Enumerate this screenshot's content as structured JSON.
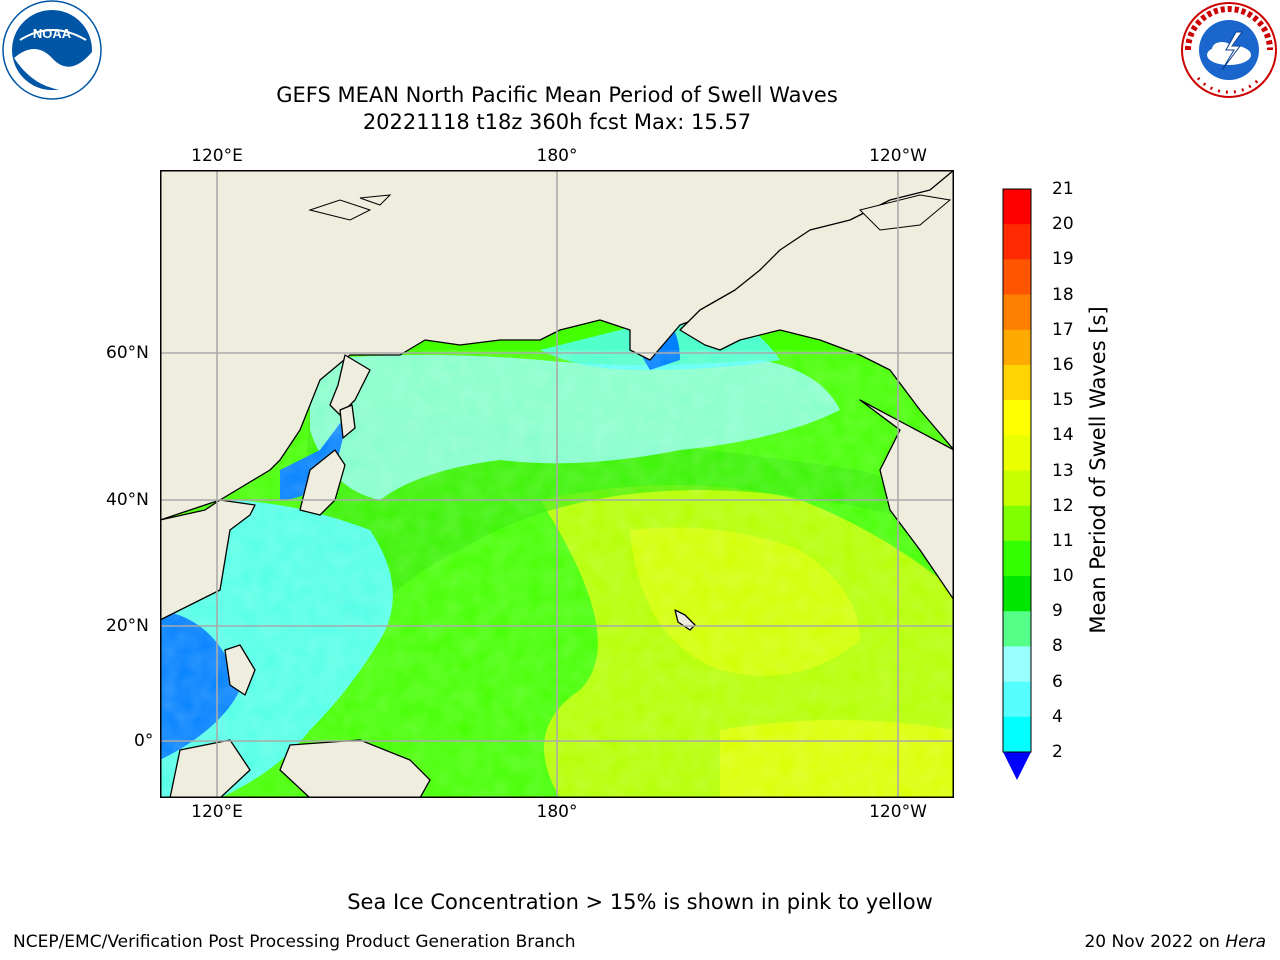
{
  "title": {
    "line1": "GEFS MEAN North Pacific Mean Period of Swell Waves",
    "line2": "20221118 t18z 360h fcst   Max: 15.57"
  },
  "map": {
    "longitude_labels": [
      "120°E",
      "180°",
      "120°W"
    ],
    "latitude_labels": [
      "60°N",
      "40°N",
      "20°N",
      "0°"
    ],
    "colors": {
      "land": "#efedde",
      "grid": "#aaaaaa",
      "coast": "#000000",
      "ice": "#ff66cc"
    }
  },
  "colorbar": {
    "label": "Mean Period of Swell Waves [s]",
    "ticks": [
      "21",
      "20",
      "19",
      "18",
      "17",
      "16",
      "15",
      "14",
      "13",
      "12",
      "11",
      "10",
      "9",
      "8",
      "6",
      "4",
      "2"
    ],
    "colors": [
      "#ff0000",
      "#ff2a00",
      "#ff5500",
      "#ff8000",
      "#ffaa00",
      "#ffd400",
      "#ffff00",
      "#eaff00",
      "#c8ff00",
      "#7fff00",
      "#33ff00",
      "#00e600",
      "#55ff88",
      "#99ffff",
      "#55ffff",
      "#00ffff",
      "#0080ff"
    ],
    "extend_color": "#0000ff"
  },
  "logos": {
    "noaa": {
      "text": "NOAA",
      "colors": {
        "outer": "#ffffff",
        "inner": "#0055a5",
        "gull": "#ffffff"
      }
    },
    "nws": {
      "colors": {
        "ring_text": "#cc0000",
        "disk": "#1a66cc",
        "cloud": "#ffffff"
      }
    }
  },
  "footer": {
    "ice_note": "Sea Ice Concentration > 15% is shown in pink to yellow",
    "left": "NCEP/EMC/Verification Post Processing Product Generation Branch",
    "right_date": "20 Nov 2022 on",
    "right_host": "Hera"
  }
}
